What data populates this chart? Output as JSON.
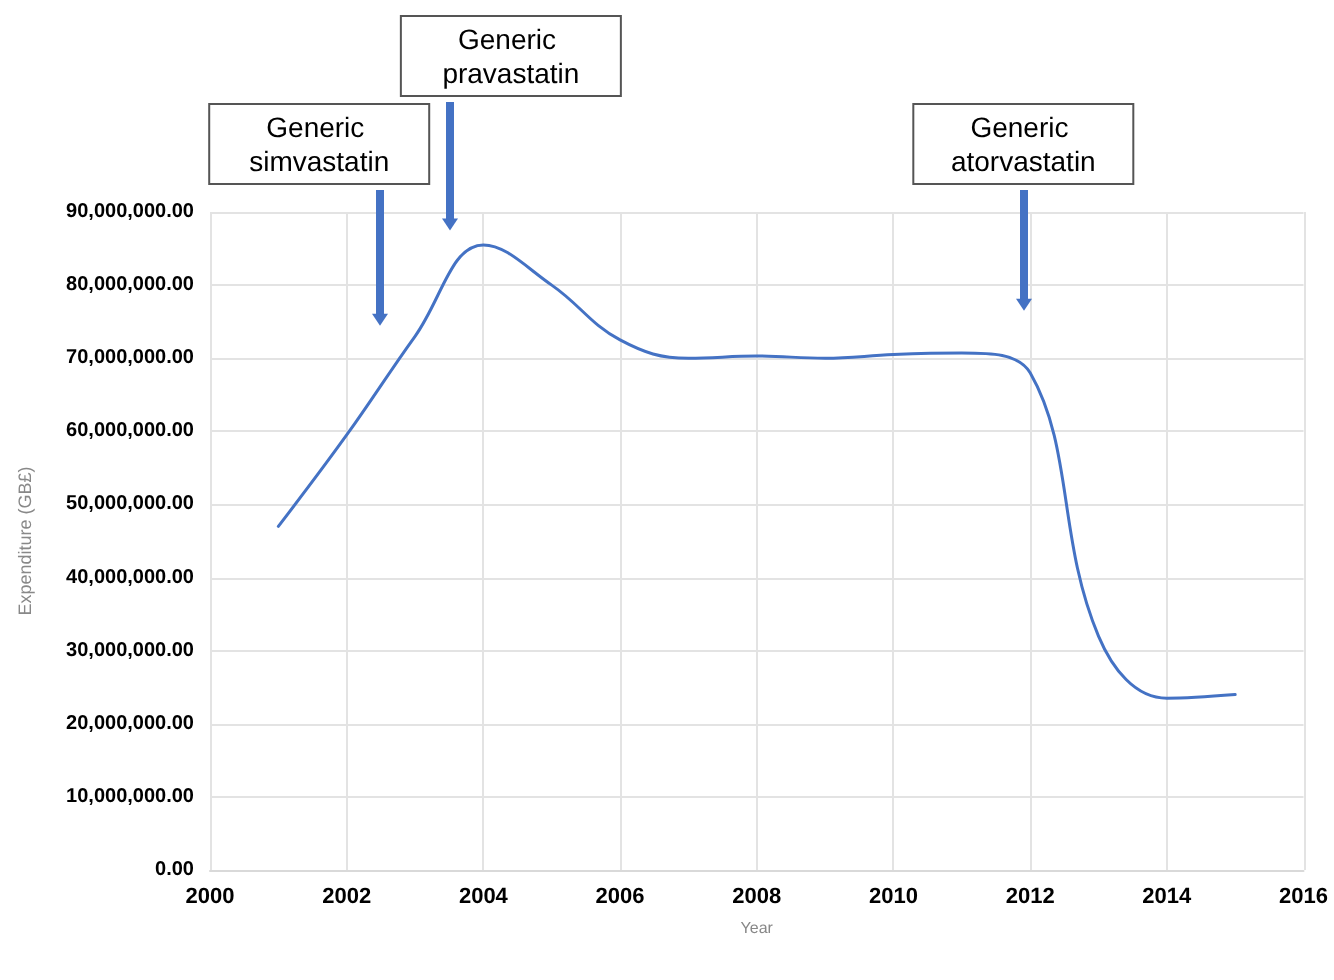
{
  "chart_data": {
    "type": "line",
    "xlabel": "Year",
    "ylabel": "Expenditure (GB£)",
    "x": [
      2001,
      2002,
      2003,
      2004,
      2005,
      2006,
      2007,
      2008,
      2009,
      2010,
      2011,
      2012,
      2013,
      2014,
      2015
    ],
    "series": [
      {
        "color": "#4472c4",
        "values": [
          47000000,
          59500000,
          73000000,
          85500000,
          80000000,
          72500000,
          70000000,
          70300000,
          70000000,
          70500000,
          70700000,
          68000000,
          32000000,
          23500000,
          24000000
        ]
      }
    ],
    "xlim": [
      2000,
      2016
    ],
    "xticks": [
      2000,
      2002,
      2004,
      2006,
      2008,
      2010,
      2012,
      2014,
      2016
    ],
    "ylim": [
      0,
      90000000
    ],
    "yticks": [
      {
        "value": 0,
        "label": "0.00"
      },
      {
        "value": 10000000,
        "label": "10,000,000.00"
      },
      {
        "value": 20000000,
        "label": "20,000,000.00"
      },
      {
        "value": 30000000,
        "label": "30,000,000.00"
      },
      {
        "value": 40000000,
        "label": "40,000,000.00"
      },
      {
        "value": 50000000,
        "label": "50,000,000.00"
      },
      {
        "value": 60000000,
        "label": "60,000,000.00"
      },
      {
        "value": 70000000,
        "label": "70,000,000.00"
      },
      {
        "value": 80000000,
        "label": "80,000,000.00"
      },
      {
        "value": 90000000,
        "label": "90,000,000.00"
      }
    ],
    "ref_lines": [
      {
        "axis": "x",
        "value": 2002.5,
        "label": "Generic simvastatin"
      },
      {
        "axis": "x",
        "value": 2003.5,
        "label": "Generic pravastatin"
      },
      {
        "axis": "x",
        "value": 2011.9,
        "label": "Generic atorvastatin"
      }
    ],
    "grid": true,
    "marker": "none",
    "line_style": "solid"
  }
}
